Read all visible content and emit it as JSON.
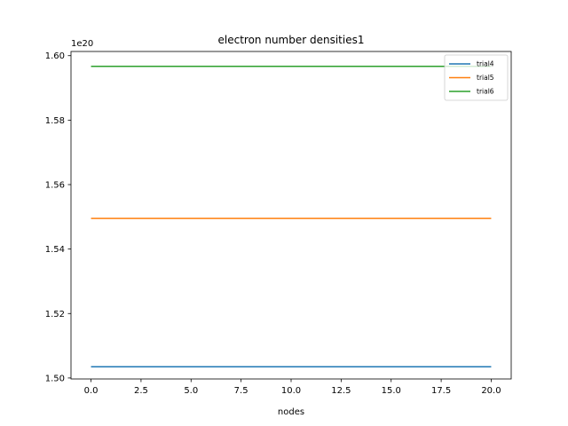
{
  "chart_data": {
    "type": "line",
    "title": "electron number densities1",
    "xlabel": "nodes",
    "ylabel": "",
    "y_offset_label": "1e20",
    "x": [
      0,
      20
    ],
    "xlim": [
      -1,
      21
    ],
    "ylim": [
      1.4997,
      1.6013
    ],
    "xticks": [
      0.0,
      2.5,
      5.0,
      7.5,
      10.0,
      12.5,
      15.0,
      17.5,
      20.0
    ],
    "xtick_labels": [
      "0.0",
      "2.5",
      "5.0",
      "7.5",
      "10.0",
      "12.5",
      "15.0",
      "17.5",
      "20.0"
    ],
    "yticks": [
      1.5,
      1.52,
      1.54,
      1.56,
      1.58,
      1.6
    ],
    "ytick_labels": [
      "1.50",
      "1.52",
      "1.54",
      "1.56",
      "1.58",
      "1.60"
    ],
    "grid": false,
    "legend_position": "top-right",
    "series": [
      {
        "name": "trial4",
        "color": "#1f77b4",
        "values": [
          1.5035,
          1.5035
        ]
      },
      {
        "name": "trial5",
        "color": "#ff7f0e",
        "values": [
          1.5495,
          1.5495
        ]
      },
      {
        "name": "trial6",
        "color": "#2ca02c",
        "values": [
          1.5967,
          1.5967
        ]
      }
    ]
  }
}
